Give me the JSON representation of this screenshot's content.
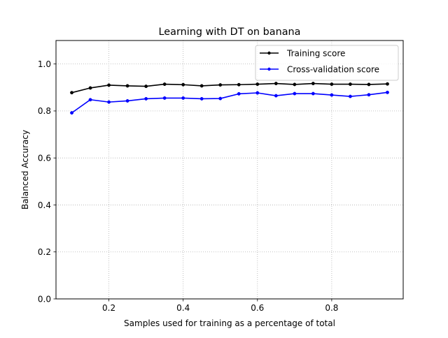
{
  "chart_data": {
    "type": "line",
    "title": "Learning with DT on banana",
    "xlabel": "Samples used for training as a percentage of total",
    "ylabel": "Balanced Accuracy",
    "xlim": [
      0.0575,
      0.9925
    ],
    "ylim": [
      0.0,
      1.1
    ],
    "xticks": [
      0.2,
      0.4,
      0.6,
      0.8
    ],
    "xtick_labels": [
      "0.2",
      "0.4",
      "0.6",
      "0.8"
    ],
    "yticks": [
      0.0,
      0.2,
      0.4,
      0.6,
      0.8,
      1.0
    ],
    "ytick_labels": [
      "0.0",
      "0.2",
      "0.4",
      "0.6",
      "0.8",
      "1.0"
    ],
    "grid": true,
    "legend_position": "top-right",
    "x": [
      0.1,
      0.15,
      0.2,
      0.25,
      0.3,
      0.35,
      0.4,
      0.45,
      0.5,
      0.55,
      0.6,
      0.65,
      0.7,
      0.75,
      0.8,
      0.85,
      0.9,
      0.95
    ],
    "series": [
      {
        "name": "Training score",
        "color": "#000000",
        "values": [
          0.878,
          0.898,
          0.91,
          0.907,
          0.905,
          0.914,
          0.912,
          0.907,
          0.911,
          0.912,
          0.914,
          0.917,
          0.913,
          0.917,
          0.914,
          0.914,
          0.913,
          0.915
        ]
      },
      {
        "name": "Cross-validation score",
        "color": "#0000ff",
        "values": [
          0.792,
          0.848,
          0.838,
          0.843,
          0.852,
          0.855,
          0.855,
          0.852,
          0.853,
          0.873,
          0.877,
          0.865,
          0.874,
          0.874,
          0.868,
          0.862,
          0.869,
          0.879
        ]
      }
    ]
  }
}
